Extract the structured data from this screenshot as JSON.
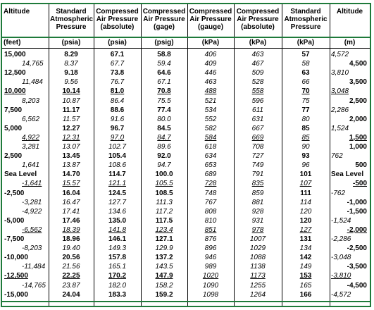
{
  "headers": [
    "Altitude",
    "Standard Atmospheric Pressure",
    "Compressed Air Pressure (absolute)",
    "Compressed Air Pressure (gage)",
    "Compressed Air Pressure (gauge)",
    "Compressed Air Pressure (absolute)",
    "Standard Atmospheric Pressure",
    "Altitude"
  ],
  "units": [
    "(feet)",
    "(psia)",
    "(psia)",
    "(psig)",
    "(kPa)",
    "(kPa)",
    "(kPa)",
    "(m)"
  ],
  "rows": [
    {
      "ft": "15,000",
      "ftIndent": false,
      "psia": "8.29",
      "abs": "67.1",
      "gage": "58.8",
      "kpag": "406",
      "kpaa": "463",
      "kpas": "57",
      "m": "4,572",
      "mIndent": false,
      "italic": false,
      "ul": false
    },
    {
      "ft": "14,765",
      "ftIndent": true,
      "psia": "8.37",
      "abs": "67.7",
      "gage": "59.4",
      "kpag": "409",
      "kpaa": "467",
      "kpas": "58",
      "m": "4,500",
      "mIndent": true,
      "italic": true,
      "ul": false
    },
    {
      "ft": "12,500",
      "ftIndent": false,
      "psia": "9.18",
      "abs": "73.8",
      "gage": "64.6",
      "kpag": "446",
      "kpaa": "509",
      "kpas": "63",
      "m": "3,810",
      "mIndent": false,
      "italic": false,
      "ul": false
    },
    {
      "ft": "11,484",
      "ftIndent": true,
      "psia": "9.56",
      "abs": "76.7",
      "gage": "67.1",
      "kpag": "463",
      "kpaa": "528",
      "kpas": "66",
      "m": "3,500",
      "mIndent": true,
      "italic": true,
      "ul": false
    },
    {
      "ft": "10,000",
      "ftIndent": false,
      "psia": "10.14",
      "abs": "81.0",
      "gage": "70.8",
      "kpag": "488",
      "kpaa": "558",
      "kpas": "70",
      "m": "3,048",
      "mIndent": false,
      "italic": false,
      "ul": true
    },
    {
      "ft": "8,203",
      "ftIndent": true,
      "psia": "10.87",
      "abs": "86.4",
      "gage": "75.5",
      "kpag": "521",
      "kpaa": "596",
      "kpas": "75",
      "m": "2,500",
      "mIndent": true,
      "italic": true,
      "ul": false
    },
    {
      "ft": "7,500",
      "ftIndent": false,
      "psia": "11.17",
      "abs": "88.6",
      "gage": "77.4",
      "kpag": "534",
      "kpaa": "611",
      "kpas": "77",
      "m": "2,286",
      "mIndent": false,
      "italic": false,
      "ul": false
    },
    {
      "ft": "6,562",
      "ftIndent": true,
      "psia": "11.57",
      "abs": "91.6",
      "gage": "80.0",
      "kpag": "552",
      "kpaa": "631",
      "kpas": "80",
      "m": "2,000",
      "mIndent": true,
      "italic": true,
      "ul": false
    },
    {
      "ft": "5,000",
      "ftIndent": false,
      "psia": "12.27",
      "abs": "96.7",
      "gage": "84.5",
      "kpag": "582",
      "kpaa": "667",
      "kpas": "85",
      "m": "1,524",
      "mIndent": false,
      "italic": false,
      "ul": false
    },
    {
      "ft": "4,922",
      "ftIndent": true,
      "psia": "12.31",
      "abs": "97.0",
      "gage": "84.7",
      "kpag": "584",
      "kpaa": "669",
      "kpas": "85",
      "m": "1,500",
      "mIndent": true,
      "italic": true,
      "ul": true
    },
    {
      "ft": "3,281",
      "ftIndent": true,
      "psia": "13.07",
      "abs": "102.7",
      "gage": "89.6",
      "kpag": "618",
      "kpaa": "708",
      "kpas": "90",
      "m": "1,000",
      "mIndent": true,
      "italic": true,
      "ul": false
    },
    {
      "ft": "2,500",
      "ftIndent": false,
      "psia": "13.45",
      "abs": "105.4",
      "gage": "92.0",
      "kpag": "634",
      "kpaa": "727",
      "kpas": "93",
      "m": "762",
      "mIndent": false,
      "italic": false,
      "ul": false
    },
    {
      "ft": "1,641",
      "ftIndent": true,
      "psia": "13.87",
      "abs": "108.6",
      "gage": "94.7",
      "kpag": "653",
      "kpaa": "749",
      "kpas": "96",
      "m": "500",
      "mIndent": true,
      "italic": true,
      "ul": false
    },
    {
      "ft": "Sea Level",
      "ftIndent": false,
      "psia": "14.70",
      "abs": "114.7",
      "gage": "100.0",
      "kpag": "689",
      "kpaa": "791",
      "kpas": "101",
      "m": "Sea Level",
      "mIndent": false,
      "italic": false,
      "ul": false
    },
    {
      "ft": "-1,641",
      "ftIndent": true,
      "psia": "15.57",
      "abs": "121.1",
      "gage": "105.5",
      "kpag": "728",
      "kpaa": "835",
      "kpas": "107",
      "m": "-500",
      "mIndent": true,
      "italic": true,
      "ul": true
    },
    {
      "ft": "-2,500",
      "ftIndent": false,
      "psia": "16.04",
      "abs": "124.5",
      "gage": "108.5",
      "kpag": "748",
      "kpaa": "859",
      "kpas": "111",
      "m": "-762",
      "mIndent": false,
      "italic": false,
      "ul": false
    },
    {
      "ft": "-3,281",
      "ftIndent": true,
      "psia": "16.47",
      "abs": "127.7",
      "gage": "111.3",
      "kpag": "767",
      "kpaa": "881",
      "kpas": "114",
      "m": "-1,000",
      "mIndent": true,
      "italic": true,
      "ul": false
    },
    {
      "ft": "-4,922",
      "ftIndent": true,
      "psia": "17.41",
      "abs": "134.6",
      "gage": "117.2",
      "kpag": "808",
      "kpaa": "928",
      "kpas": "120",
      "m": "-1,500",
      "mIndent": true,
      "italic": true,
      "ul": false
    },
    {
      "ft": "-5,000",
      "ftIndent": false,
      "psia": "17.46",
      "abs": "135.0",
      "gage": "117.5",
      "kpag": "810",
      "kpaa": "931",
      "kpas": "120",
      "m": "-1,524",
      "mIndent": false,
      "italic": false,
      "ul": false
    },
    {
      "ft": "-6,562",
      "ftIndent": true,
      "psia": "18.39",
      "abs": "141.8",
      "gage": "123.4",
      "kpag": "851",
      "kpaa": "978",
      "kpas": "127",
      "m": "-2,000",
      "mIndent": true,
      "italic": true,
      "ul": true
    },
    {
      "ft": "-7,500",
      "ftIndent": false,
      "psia": "18.96",
      "abs": "146.1",
      "gage": "127.1",
      "kpag": "876",
      "kpaa": "1007",
      "kpas": "131",
      "m": "-2,286",
      "mIndent": false,
      "italic": false,
      "ul": false
    },
    {
      "ft": "-8,203",
      "ftIndent": true,
      "psia": "19.40",
      "abs": "149.3",
      "gage": "129.9",
      "kpag": "896",
      "kpaa": "1029",
      "kpas": "134",
      "m": "-2,500",
      "mIndent": true,
      "italic": true,
      "ul": false
    },
    {
      "ft": "-10,000",
      "ftIndent": false,
      "psia": "20.56",
      "abs": "157.8",
      "gage": "137.2",
      "kpag": "946",
      "kpaa": "1088",
      "kpas": "142",
      "m": "-3,048",
      "mIndent": false,
      "italic": false,
      "ul": false
    },
    {
      "ft": "-11,484",
      "ftIndent": true,
      "psia": "21.56",
      "abs": "165.1",
      "gage": "143.5",
      "kpag": "989",
      "kpaa": "1138",
      "kpas": "149",
      "m": "-3,500",
      "mIndent": true,
      "italic": true,
      "ul": false
    },
    {
      "ft": "-12,500",
      "ftIndent": false,
      "psia": "22.25",
      "abs": "170.2",
      "gage": "147.9",
      "kpag": "1020",
      "kpaa": "1173",
      "kpas": "153",
      "m": "-3,810",
      "mIndent": false,
      "italic": false,
      "ul": true
    },
    {
      "ft": "-14,765",
      "ftIndent": true,
      "psia": "23.87",
      "abs": "182.0",
      "gage": "158.2",
      "kpag": "1090",
      "kpaa": "1255",
      "kpas": "165",
      "m": "-4,500",
      "mIndent": true,
      "italic": true,
      "ul": false
    },
    {
      "ft": "-15,000",
      "ftIndent": false,
      "psia": "24.04",
      "abs": "183.3",
      "gage": "159.2",
      "kpag": "1098",
      "kpaa": "1264",
      "kpas": "166",
      "m": "-4,572",
      "mIndent": false,
      "italic": false,
      "ul": false
    }
  ],
  "colors": {
    "border": "#1e7a3a",
    "rule": "#000000"
  }
}
